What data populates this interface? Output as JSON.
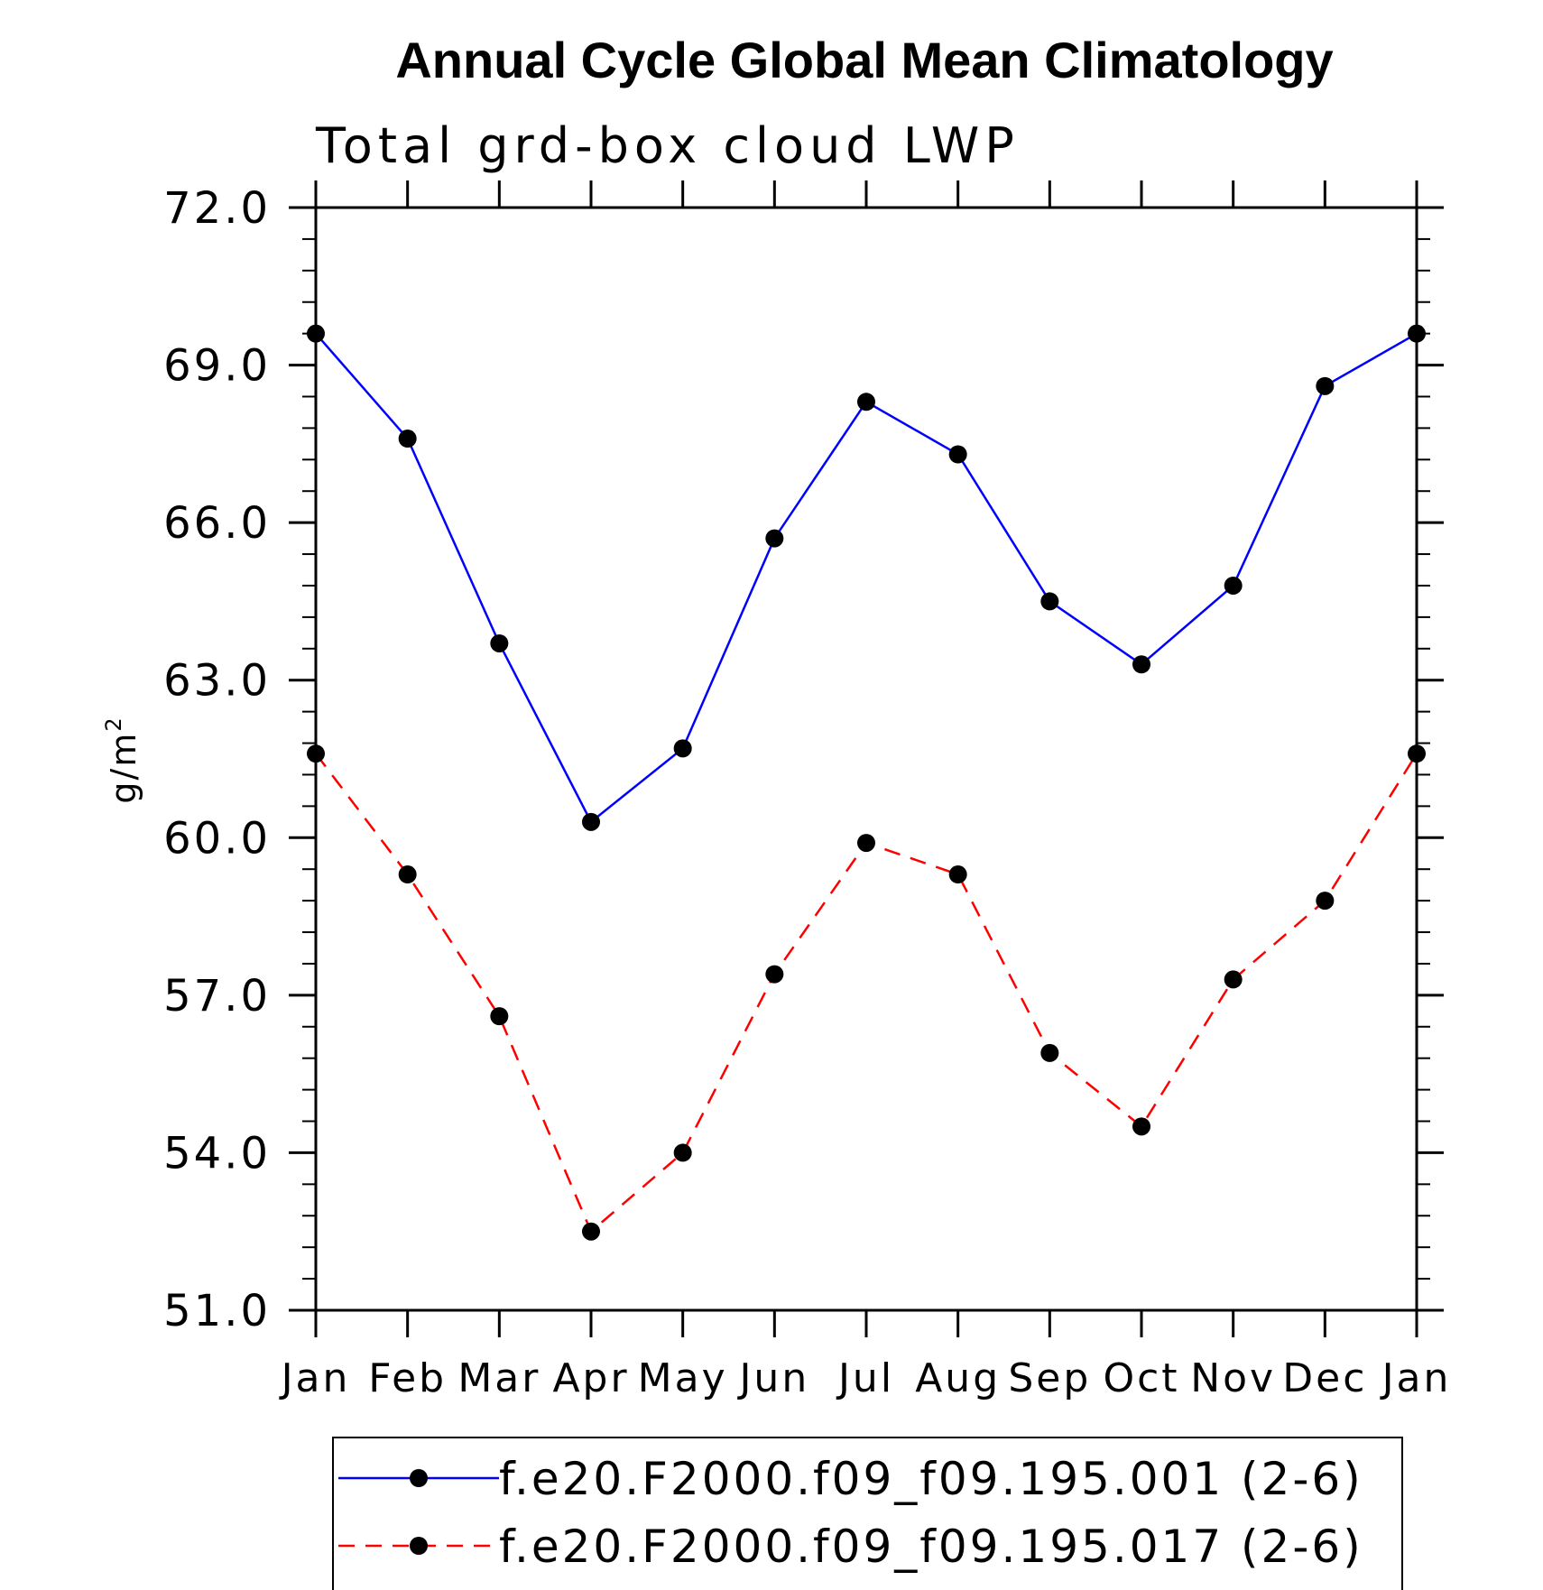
{
  "chart_data": {
    "type": "line",
    "title": "Annual Cycle Global Mean Climatology",
    "subtitle": "Total grd-box cloud LWP",
    "xlabel": "",
    "ylabel": "g/m",
    "ylabel_superscript": "2",
    "ylim": [
      51.0,
      72.0
    ],
    "yticks": [
      "51.0",
      "54.0",
      "57.0",
      "60.0",
      "63.0",
      "66.0",
      "69.0",
      "72.0"
    ],
    "ytick_values": [
      51,
      54,
      57,
      60,
      63,
      66,
      69,
      72
    ],
    "categories": [
      "Jan",
      "Feb",
      "Mar",
      "Apr",
      "May",
      "Jun",
      "Jul",
      "Aug",
      "Sep",
      "Oct",
      "Nov",
      "Dec",
      "Jan"
    ],
    "grid": false,
    "legend_position": "bottom-center",
    "series": [
      {
        "name": "f.e20.F2000.f09_f09.195.001 (2-6)",
        "color": "#0000ff",
        "style": "solid",
        "marker_color": "#000000",
        "values": [
          69.6,
          67.6,
          63.7,
          60.3,
          61.7,
          65.7,
          68.3,
          67.3,
          64.5,
          63.3,
          64.8,
          68.6,
          69.6
        ]
      },
      {
        "name": "f.e20.F2000.f09_f09.195.017 (2-6)",
        "color": "#ff0000",
        "style": "dashed",
        "marker_color": "#000000",
        "values": [
          61.6,
          59.3,
          56.6,
          52.5,
          54.0,
          57.4,
          59.9,
          59.3,
          55.9,
          54.5,
          57.3,
          58.8,
          61.6
        ]
      }
    ]
  }
}
